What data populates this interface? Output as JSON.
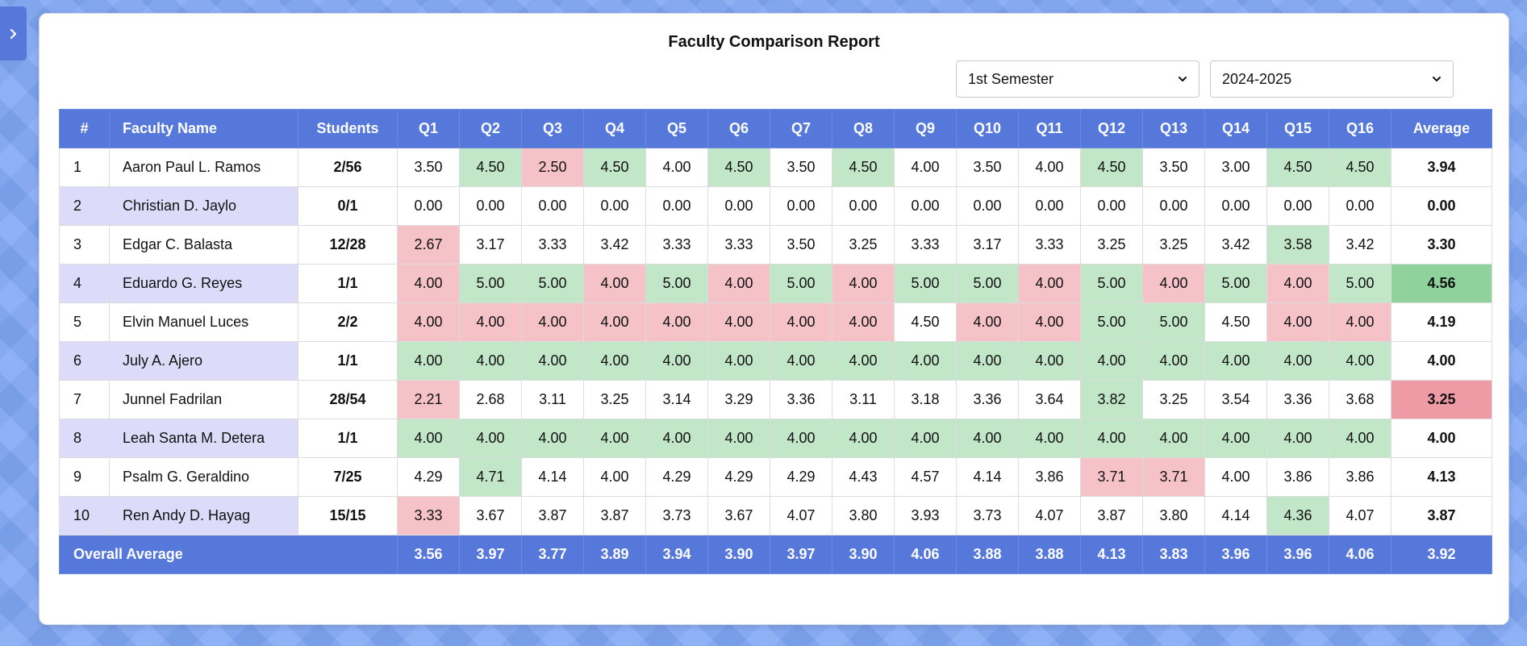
{
  "title": "Faculty Comparison Report",
  "filters": {
    "semester": "1st Semester",
    "year": "2024-2025"
  },
  "table": {
    "headers": [
      "#",
      "Faculty Name",
      "Students",
      "Q1",
      "Q2",
      "Q3",
      "Q4",
      "Q5",
      "Q6",
      "Q7",
      "Q8",
      "Q9",
      "Q10",
      "Q11",
      "Q12",
      "Q13",
      "Q14",
      "Q15",
      "Q16",
      "Average"
    ],
    "rows": [
      {
        "num": "1",
        "name": "Aaron Paul L. Ramos",
        "students": "2/56",
        "q": [
          "3.50",
          "4.50",
          "2.50",
          "4.50",
          "4.00",
          "4.50",
          "3.50",
          "4.50",
          "4.00",
          "3.50",
          "4.00",
          "4.50",
          "3.50",
          "3.00",
          "4.50",
          "4.50"
        ],
        "avg": "3.94"
      },
      {
        "num": "2",
        "name": "Christian D. Jaylo",
        "students": "0/1",
        "q": [
          "0.00",
          "0.00",
          "0.00",
          "0.00",
          "0.00",
          "0.00",
          "0.00",
          "0.00",
          "0.00",
          "0.00",
          "0.00",
          "0.00",
          "0.00",
          "0.00",
          "0.00",
          "0.00"
        ],
        "avg": "0.00"
      },
      {
        "num": "3",
        "name": "Edgar C. Balasta",
        "students": "12/28",
        "q": [
          "2.67",
          "3.17",
          "3.33",
          "3.42",
          "3.33",
          "3.33",
          "3.50",
          "3.25",
          "3.33",
          "3.17",
          "3.33",
          "3.25",
          "3.25",
          "3.42",
          "3.58",
          "3.42"
        ],
        "avg": "3.30"
      },
      {
        "num": "4",
        "name": "Eduardo G. Reyes",
        "students": "1/1",
        "q": [
          "4.00",
          "5.00",
          "5.00",
          "4.00",
          "5.00",
          "4.00",
          "5.00",
          "4.00",
          "5.00",
          "5.00",
          "4.00",
          "5.00",
          "4.00",
          "5.00",
          "4.00",
          "5.00"
        ],
        "avg": "4.56"
      },
      {
        "num": "5",
        "name": "Elvin Manuel Luces",
        "students": "2/2",
        "q": [
          "4.00",
          "4.00",
          "4.00",
          "4.00",
          "4.00",
          "4.00",
          "4.00",
          "4.00",
          "4.50",
          "4.00",
          "4.00",
          "5.00",
          "5.00",
          "4.50",
          "4.00",
          "4.00"
        ],
        "avg": "4.19"
      },
      {
        "num": "6",
        "name": "July A. Ajero",
        "students": "1/1",
        "q": [
          "4.00",
          "4.00",
          "4.00",
          "4.00",
          "4.00",
          "4.00",
          "4.00",
          "4.00",
          "4.00",
          "4.00",
          "4.00",
          "4.00",
          "4.00",
          "4.00",
          "4.00",
          "4.00"
        ],
        "avg": "4.00"
      },
      {
        "num": "7",
        "name": "Junnel Fadrilan",
        "students": "28/54",
        "q": [
          "2.21",
          "2.68",
          "3.11",
          "3.25",
          "3.14",
          "3.29",
          "3.36",
          "3.11",
          "3.18",
          "3.36",
          "3.64",
          "3.82",
          "3.25",
          "3.54",
          "3.36",
          "3.68"
        ],
        "avg": "3.25"
      },
      {
        "num": "8",
        "name": "Leah Santa M. Detera",
        "students": "1/1",
        "q": [
          "4.00",
          "4.00",
          "4.00",
          "4.00",
          "4.00",
          "4.00",
          "4.00",
          "4.00",
          "4.00",
          "4.00",
          "4.00",
          "4.00",
          "4.00",
          "4.00",
          "4.00",
          "4.00"
        ],
        "avg": "4.00"
      },
      {
        "num": "9",
        "name": "Psalm G. Geraldino",
        "students": "7/25",
        "q": [
          "4.29",
          "4.71",
          "4.14",
          "4.00",
          "4.29",
          "4.29",
          "4.29",
          "4.43",
          "4.57",
          "4.14",
          "3.86",
          "3.71",
          "3.71",
          "4.00",
          "3.86",
          "3.86"
        ],
        "avg": "4.13"
      },
      {
        "num": "10",
        "name": "Ren Andy D. Hayag",
        "students": "15/15",
        "q": [
          "3.33",
          "3.67",
          "3.87",
          "3.87",
          "3.73",
          "3.67",
          "4.07",
          "3.80",
          "3.93",
          "3.73",
          "4.07",
          "3.87",
          "3.80",
          "4.14",
          "4.36",
          "4.07"
        ],
        "avg": "3.87"
      }
    ],
    "footer": {
      "label": "Overall Average",
      "q": [
        "3.56",
        "3.97",
        "3.77",
        "3.89",
        "3.94",
        "3.90",
        "3.97",
        "3.90",
        "4.06",
        "3.88",
        "3.88",
        "4.13",
        "3.83",
        "3.96",
        "3.96",
        "4.06"
      ],
      "avg": "3.92"
    }
  },
  "highlight_colors": {
    "above": "#c2e6c8",
    "below": "#f5c2c8",
    "best_avg": "#8fd29b",
    "worst_avg": "#ee9ba5"
  }
}
